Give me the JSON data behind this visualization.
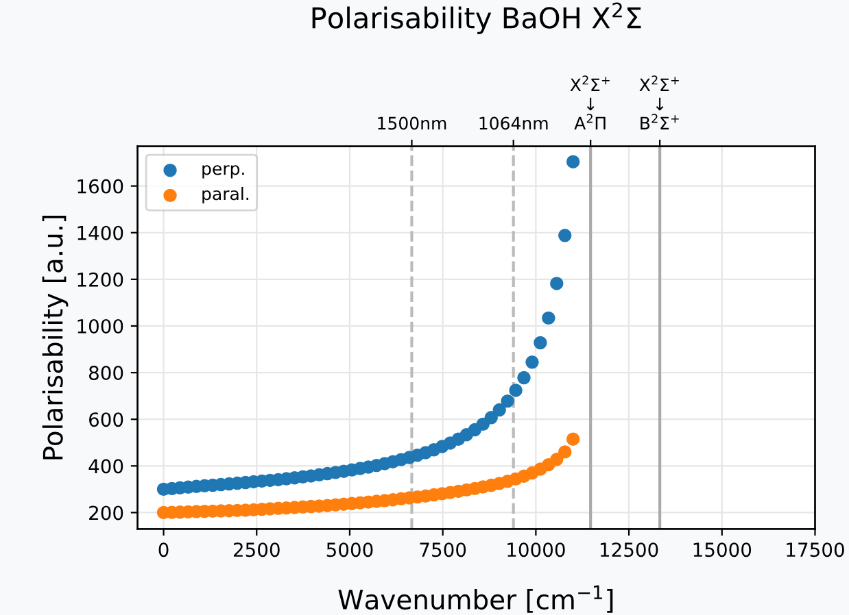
{
  "chart_data": {
    "type": "scatter",
    "title": "Polarisability BaOH X$^{2}$Σ",
    "xlabel": "Wavenumber [cm$^{−1}$]",
    "ylabel": "Polarisability [a.u.]",
    "x": [
      0,
      220,
      440,
      660,
      880,
      1100,
      1320,
      1540,
      1760,
      1980,
      2200,
      2420,
      2640,
      2860,
      3080,
      3300,
      3520,
      3740,
      3960,
      4180,
      4400,
      4620,
      4840,
      5060,
      5280,
      5500,
      5720,
      5940,
      6160,
      6380,
      6600,
      6820,
      7040,
      7260,
      7480,
      7700,
      7920,
      8140,
      8360,
      8580,
      8800,
      9020,
      9240,
      9460,
      9680,
      9900,
      10120,
      10340,
      10560,
      10780,
      11000
    ],
    "series": [
      {
        "name": "perp.",
        "color": "#1f77b4",
        "values": [
          300,
          303,
          306,
          309,
          312,
          315,
          317,
          320,
          323,
          326,
          329,
          332,
          335,
          338,
          341,
          345,
          349,
          353,
          357,
          362,
          367,
          372,
          377,
          383,
          389,
          395,
          402,
          410,
          418,
          427,
          436,
          446,
          457,
          469,
          483,
          498,
          515,
          534,
          555,
          579,
          607,
          640,
          678,
          724,
          778,
          845,
          928,
          1034,
          1182,
          1388,
          1704
        ]
      },
      {
        "name": "paral.",
        "color": "#ff7f0e",
        "values": [
          200,
          201,
          202,
          203,
          204,
          205,
          206,
          207,
          208,
          209,
          210,
          212,
          214,
          216,
          218,
          220,
          222,
          224,
          226,
          228,
          230,
          233,
          236,
          239,
          242,
          245,
          248,
          251,
          255,
          259,
          263,
          267,
          271,
          276,
          281,
          286,
          291,
          297,
          303,
          310,
          317,
          325,
          334,
          344,
          356,
          370,
          386,
          405,
          428,
          460,
          515
        ]
      }
    ],
    "xlim": [
      -700,
      17500
    ],
    "xticks": [
      0,
      2500,
      5000,
      7500,
      10000,
      12500,
      15000,
      17500
    ],
    "ylim": [
      130,
      1770
    ],
    "yticks": [
      200,
      400,
      600,
      800,
      1000,
      1200,
      1400,
      1600
    ],
    "ref_lines": [
      {
        "axis": "x",
        "value": 6667,
        "label": "1500nm",
        "color": "#bbbbbb",
        "line_style": "dashed"
      },
      {
        "axis": "x",
        "value": 9398,
        "label": "1064nm",
        "color": "#bbbbbb",
        "line_style": "dashed"
      },
      {
        "axis": "x",
        "value": 11470,
        "label": "X$^{2}$Σ$^{+}$\n↓\nA$^{2}$Π",
        "color": "#aaaaaa",
        "line_style": "solid"
      },
      {
        "axis": "x",
        "value": 13330,
        "label": "X$^{2}$Σ$^{+}$\n↓\nB$^{2}$Σ$^{+}$",
        "color": "#aaaaaa",
        "line_style": "solid"
      }
    ],
    "grid": true,
    "legend": "top left",
    "marker": "circle"
  }
}
